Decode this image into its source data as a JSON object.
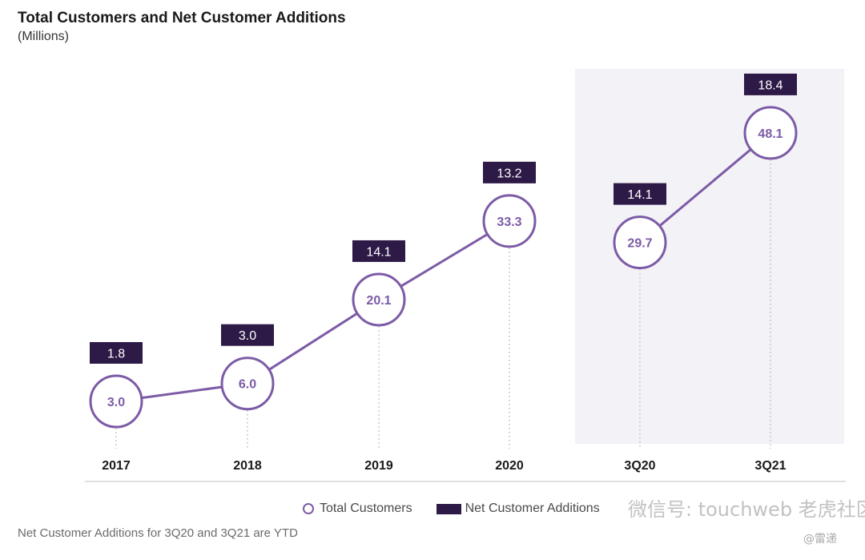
{
  "colors": {
    "accent": "#7c5ba6",
    "dark_purple": "#2e1a47",
    "highlight_bg": "#f3f2f7",
    "axis": "#d6d6d6"
  },
  "chart_data": {
    "type": "line",
    "title": "Total Customers and Net Customer Additions",
    "subtitle": "(Millions)",
    "categories": [
      "2017",
      "2018",
      "2019",
      "2020",
      "3Q20",
      "3Q21"
    ],
    "series": [
      {
        "name": "Total Customers",
        "values": [
          3.0,
          6.0,
          20.1,
          33.3,
          29.7,
          48.1
        ]
      },
      {
        "name": "Net Customer Additions",
        "values": [
          1.8,
          3.0,
          14.1,
          13.2,
          14.1,
          18.4
        ]
      }
    ],
    "connected_segments": [
      [
        0,
        1,
        2,
        3
      ],
      [
        4,
        5
      ]
    ],
    "highlighted_categories": [
      "3Q20",
      "3Q21"
    ],
    "legend": {
      "position": "bottom-center",
      "items": [
        "Total Customers",
        "Net Customer Additions"
      ]
    },
    "footnote": "Net Customer Additions for 3Q20 and 3Q21 are YTD"
  },
  "watermark": {
    "text": "微信号: touchweb  老虎社区",
    "sub": "@雷递"
  }
}
